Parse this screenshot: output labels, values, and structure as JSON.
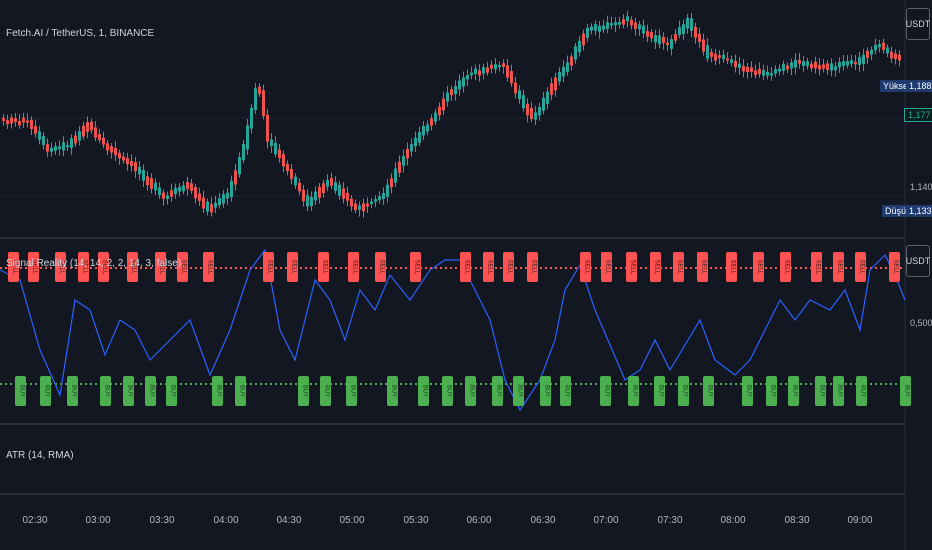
{
  "header": {
    "symbol_title": "Fetch.AI / TetherUS, 1, BINANCE",
    "indicator_title": "Signal Reality (14, 14, 2, 2, 14, 3, false)",
    "atr_title": "ATR (14, RMA)"
  },
  "price_axis": {
    "currency": "USDT",
    "high_label": "Yüksek",
    "high_value": "1,188",
    "current_value": "1,177",
    "tick_value": "1,140",
    "low_label": "Düşük",
    "low_value": "1,133",
    "indicator_currency": "USDT",
    "indicator_value": "0,500"
  },
  "time_axis": [
    "02:30",
    "03:00",
    "03:30",
    "04:00",
    "04:30",
    "05:00",
    "05:30",
    "06:00",
    "06:30",
    "07:00",
    "07:30",
    "08:00",
    "08:30",
    "09:00"
  ],
  "signals": {
    "sell_label": "SELL",
    "buy_label": "BUY"
  },
  "colors": {
    "background": "#131722",
    "up_candle": "#26a69a",
    "down_candle": "#ef5350",
    "sell": "#ff5252",
    "buy": "#4caf50",
    "oscillator": "#2962ff",
    "high_box": "#1e3a6e",
    "current_box": "#0b3b36"
  }
}
